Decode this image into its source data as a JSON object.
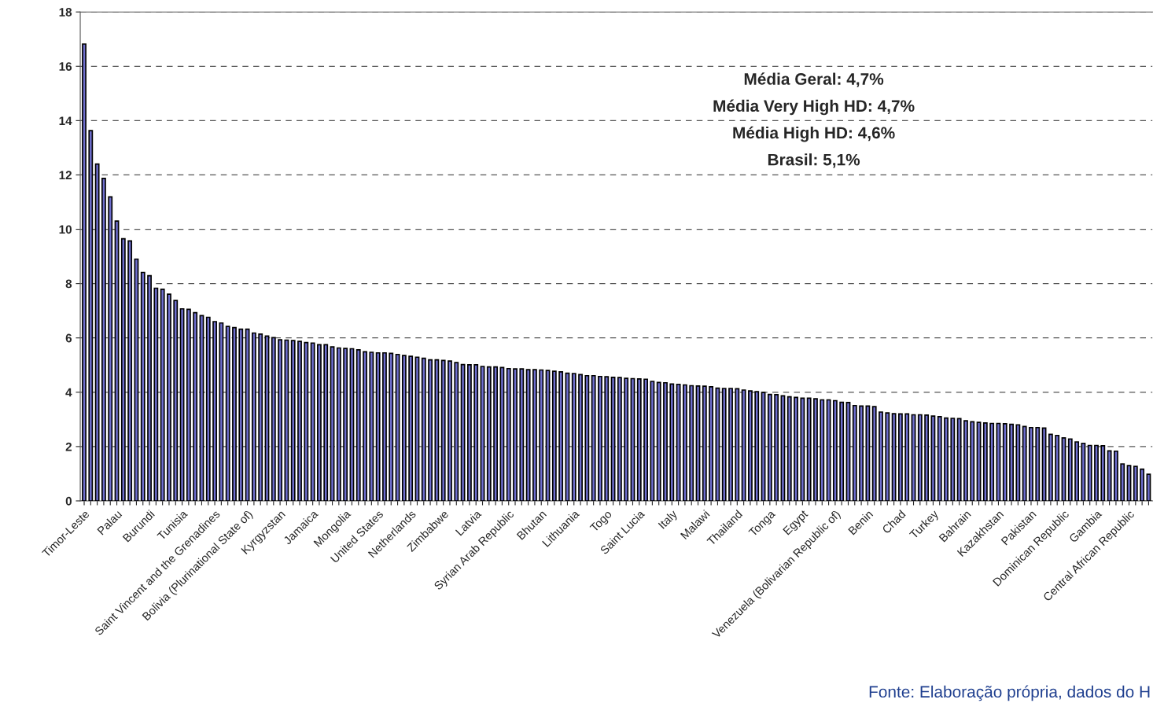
{
  "chart_data": {
    "type": "bar",
    "categories": [
      "Timor-Leste",
      null,
      null,
      null,
      null,
      "Palau",
      null,
      null,
      null,
      null,
      "Burundi",
      null,
      null,
      null,
      null,
      "Tunisia",
      null,
      null,
      null,
      null,
      "Saint Vincent and the Grenadines",
      null,
      null,
      null,
      null,
      "Bolivia (Plurinational State of)",
      null,
      null,
      null,
      null,
      "Kyrgyzstan",
      null,
      null,
      null,
      null,
      "Jamaica",
      null,
      null,
      null,
      null,
      "Mongolia",
      null,
      null,
      null,
      null,
      "United States",
      null,
      null,
      null,
      null,
      "Netherlands",
      null,
      null,
      null,
      null,
      "Zimbabwe",
      null,
      null,
      null,
      null,
      "Latvia",
      null,
      null,
      null,
      null,
      "Syrian Arab Republic",
      null,
      null,
      null,
      null,
      "Bhutan",
      null,
      null,
      null,
      null,
      "Lithuania",
      null,
      null,
      null,
      null,
      "Togo",
      null,
      null,
      null,
      null,
      "Saint Lucia",
      null,
      null,
      null,
      null,
      "Italy",
      null,
      null,
      null,
      null,
      "Malawi",
      null,
      null,
      null,
      null,
      "Thailand",
      null,
      null,
      null,
      null,
      "Tonga",
      null,
      null,
      null,
      null,
      "Egypt",
      null,
      null,
      null,
      null,
      "Venezuela (Bolivarian Republic of)",
      null,
      null,
      null,
      null,
      "Benin",
      null,
      null,
      null,
      null,
      "Chad",
      null,
      null,
      null,
      null,
      "Turkey",
      null,
      null,
      null,
      null,
      "Bahrain",
      null,
      null,
      null,
      null,
      "Kazakhstan",
      null,
      null,
      null,
      null,
      "Pakistan",
      null,
      null,
      null,
      null,
      "Dominican Republic",
      null,
      null,
      null,
      null,
      "Gambia",
      null,
      null,
      null,
      null,
      "Central African Republic",
      null,
      null,
      null
    ],
    "values": [
      16.82,
      13.63,
      12.4,
      11.87,
      11.19,
      10.3,
      9.65,
      9.57,
      8.9,
      8.41,
      8.29,
      7.83,
      7.79,
      7.61,
      7.38,
      7.07,
      7.05,
      6.93,
      6.82,
      6.76,
      6.6,
      6.55,
      6.42,
      6.38,
      6.32,
      6.32,
      6.18,
      6.14,
      6.07,
      6.01,
      5.93,
      5.92,
      5.9,
      5.87,
      5.83,
      5.81,
      5.75,
      5.75,
      5.67,
      5.63,
      5.61,
      5.6,
      5.56,
      5.49,
      5.47,
      5.45,
      5.45,
      5.43,
      5.39,
      5.35,
      5.32,
      5.29,
      5.25,
      5.19,
      5.19,
      5.17,
      5.15,
      5.09,
      5.02,
      5.01,
      5.01,
      4.95,
      4.93,
      4.93,
      4.91,
      4.87,
      4.86,
      4.86,
      4.83,
      4.83,
      4.82,
      4.8,
      4.77,
      4.75,
      4.7,
      4.69,
      4.65,
      4.61,
      4.61,
      4.58,
      4.57,
      4.55,
      4.54,
      4.51,
      4.5,
      4.49,
      4.48,
      4.4,
      4.36,
      4.35,
      4.3,
      4.29,
      4.27,
      4.24,
      4.23,
      4.22,
      4.2,
      4.15,
      4.14,
      4.14,
      4.13,
      4.08,
      4.05,
      4.02,
      3.99,
      3.92,
      3.91,
      3.87,
      3.83,
      3.81,
      3.78,
      3.78,
      3.76,
      3.72,
      3.72,
      3.69,
      3.63,
      3.62,
      3.51,
      3.49,
      3.49,
      3.47,
      3.27,
      3.24,
      3.21,
      3.2,
      3.2,
      3.17,
      3.17,
      3.16,
      3.12,
      3.1,
      3.05,
      3.04,
      3.03,
      2.95,
      2.91,
      2.89,
      2.87,
      2.85,
      2.85,
      2.84,
      2.82,
      2.8,
      2.74,
      2.7,
      2.7,
      2.68,
      2.45,
      2.41,
      2.32,
      2.28,
      2.17,
      2.12,
      2.04,
      2.04,
      2.03,
      1.84,
      1.83,
      1.36,
      1.3,
      1.27,
      1.17,
      0.98
    ],
    "color": "#6f6fcf",
    "ylim": [
      0,
      18
    ],
    "yticks": [
      0,
      2,
      4,
      6,
      8,
      10,
      12,
      14,
      16,
      18
    ],
    "grid": "y",
    "annotations": [
      "Média Geral: 4,7%",
      "Média Very High HD: 4,7%",
      "Média High HD: 4,6%",
      "Brasil: 5,1%",
      "Fonte: Elaboração própria, dados do H"
    ]
  }
}
